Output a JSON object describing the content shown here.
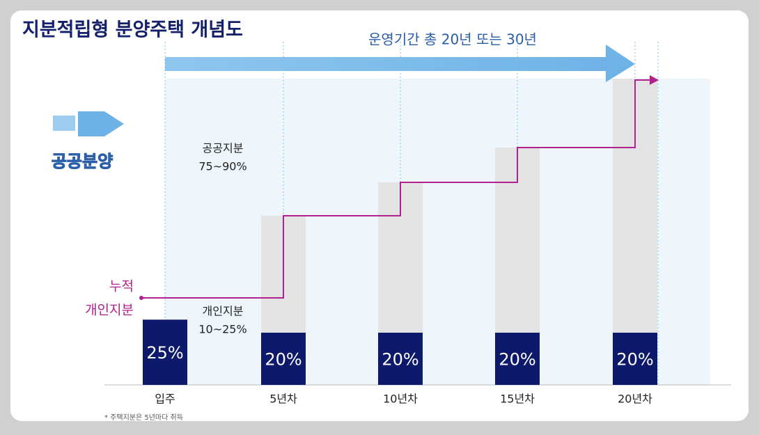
{
  "chart_data": {
    "type": "bar",
    "title": "지분적립형 분양주택 개념도",
    "period_label": "운영기간 총 20년 또는 30년",
    "badge": "공공분양",
    "public_share": [
      "공공지분",
      "75~90%"
    ],
    "cumulative_label": [
      "누적",
      "개인지분"
    ],
    "private_share": [
      "개인지분",
      "10~25%"
    ],
    "footnote": "* 주택지분은 5년마다 취득",
    "categories": [
      "입주",
      "5년차",
      "10년차",
      "15년차",
      "20년차"
    ],
    "values": [
      25,
      20,
      20,
      20,
      20
    ],
    "value_labels": [
      "25%",
      "20%",
      "20%",
      "20%",
      "20%"
    ],
    "color": "#0d1a6b"
  }
}
